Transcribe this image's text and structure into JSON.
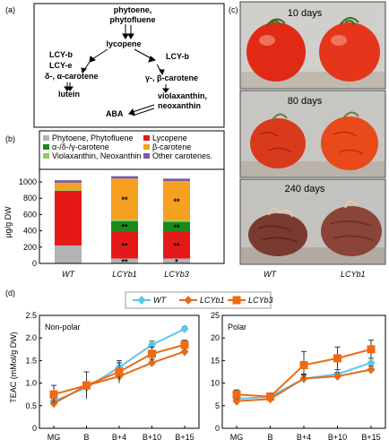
{
  "panel_labels": {
    "a": "(a)",
    "b": "(b)",
    "c": "(c)",
    "d": "(d)"
  },
  "pathway": {
    "phytoene": "phytoene,",
    "phytofluene": "phytofluene",
    "lycopene": "lycopene",
    "left_enzyme_1": "LCY-b",
    "left_enzyme_2": "LCY-e",
    "left_product": "δ-, α-carotene",
    "lutein": "lutein",
    "right_enzyme": "LCY-b",
    "right_product": "γ-, β-carotene",
    "violaxanthin": "violaxanthin,",
    "neoxanthin": "neoxanthin",
    "aba": "ABA"
  },
  "photos": {
    "panel_c_labels": [
      "10 days",
      "80 days",
      "240 days"
    ],
    "bottom_labels": [
      "WT",
      "LCYb1"
    ]
  },
  "colors": {
    "phytoene": "#b3b3b3",
    "alpha": "#1a8a1a",
    "violax": "#90cc5a",
    "lycopene": "#e61919",
    "beta": "#f5a020",
    "other": "#7a5aa8",
    "wt_line": "#5bc8ea",
    "lcyb1_line": "#e56b1a",
    "lcyb3_line": "#f06a10"
  },
  "chart_data": [
    {
      "type": "bar",
      "stacked": true,
      "ylabel": "µg/g DW",
      "ylim": [
        0,
        1000
      ],
      "yticks": [
        "0",
        "200",
        "400",
        "600",
        "800",
        "1000"
      ],
      "categories": [
        "WT",
        "LCYb1",
        "LCYb3"
      ],
      "legend": [
        "Phytoene, Phytofluene",
        "α-/δ-/γ-carotene",
        "Violaxanthin, Neoxanthin",
        "Lycopene",
        "β-carotene",
        "Other carotenes."
      ],
      "series": [
        {
          "name": "Phytoene, Phytofluene",
          "values": [
            220,
            60,
            60
          ]
        },
        {
          "name": "Lycopene",
          "values": [
            670,
            330,
            330
          ]
        },
        {
          "name": "α-/δ-/γ-carotene",
          "values": [
            0,
            130,
            120
          ]
        },
        {
          "name": "Violaxanthin, Neoxanthin",
          "values": [
            10,
            20,
            20
          ]
        },
        {
          "name": "β-carotene",
          "values": [
            90,
            500,
            480
          ]
        },
        {
          "name": "Other carotenes.",
          "values": [
            30,
            30,
            30
          ]
        }
      ],
      "annotations": [
        {
          "category": "LCYb1",
          "series": "β-carotene",
          "text": "**"
        },
        {
          "category": "LCYb1",
          "series": "α-/δ-/γ-carotene",
          "text": "**"
        },
        {
          "category": "LCYb1",
          "series": "Lycopene",
          "text": "**"
        },
        {
          "category": "LCYb1",
          "series": "Phytoene, Phytofluene",
          "text": "**"
        },
        {
          "category": "LCYb3",
          "series": "β-carotene",
          "text": "**"
        },
        {
          "category": "LCYb3",
          "series": "α-/δ-/γ-carotene",
          "text": "**"
        },
        {
          "category": "LCYb3",
          "series": "Lycopene",
          "text": "**"
        },
        {
          "category": "LCYb3",
          "series": "Phytoene, Phytofluene",
          "text": "*"
        }
      ]
    },
    {
      "type": "line",
      "title": "Non-polar",
      "ylabel": "TEAC (mMol/g DW)",
      "ylim": [
        0,
        2.5
      ],
      "yticks": [
        "0",
        "0.5",
        "1.0",
        "1.5",
        "2.0",
        "2.5"
      ],
      "categories": [
        "MG",
        "B",
        "B+4",
        "B+10",
        "B+15"
      ],
      "series": [
        {
          "name": "WT",
          "values": [
            0.6,
            0.9,
            1.35,
            1.85,
            2.2
          ],
          "err": [
            0.05,
            0.1,
            0.1,
            0.08,
            0.05
          ]
        },
        {
          "name": "LCYb1",
          "values": [
            0.55,
            0.95,
            1.15,
            1.45,
            1.7
          ],
          "err": [
            0.05,
            0.08,
            0.08,
            0.08,
            0.1
          ]
        },
        {
          "name": "LCYb3",
          "values": [
            0.75,
            0.95,
            1.25,
            1.65,
            1.85
          ],
          "err": [
            0.2,
            0.3,
            0.25,
            0.15,
            0.1
          ]
        }
      ]
    },
    {
      "type": "line",
      "title": "Polar",
      "ylim": [
        0,
        25
      ],
      "yticks": [
        "0",
        "5",
        "10",
        "15",
        "20",
        "25"
      ],
      "categories": [
        "MG",
        "B",
        "B+4",
        "B+10",
        "B+15"
      ],
      "series": [
        {
          "name": "WT",
          "values": [
            6.5,
            7,
            11,
            12,
            14.5
          ],
          "err": [
            0.5,
            0.5,
            1,
            1,
            1
          ]
        },
        {
          "name": "LCYb1",
          "values": [
            6,
            6.5,
            11,
            11.5,
            13
          ],
          "err": [
            0.5,
            0.5,
            0.8,
            0.8,
            0.8
          ]
        },
        {
          "name": "LCYb3",
          "values": [
            7.5,
            7,
            14,
            15.5,
            17.5
          ],
          "err": [
            1,
            0.8,
            3,
            2.5,
            2
          ]
        }
      ]
    }
  ]
}
